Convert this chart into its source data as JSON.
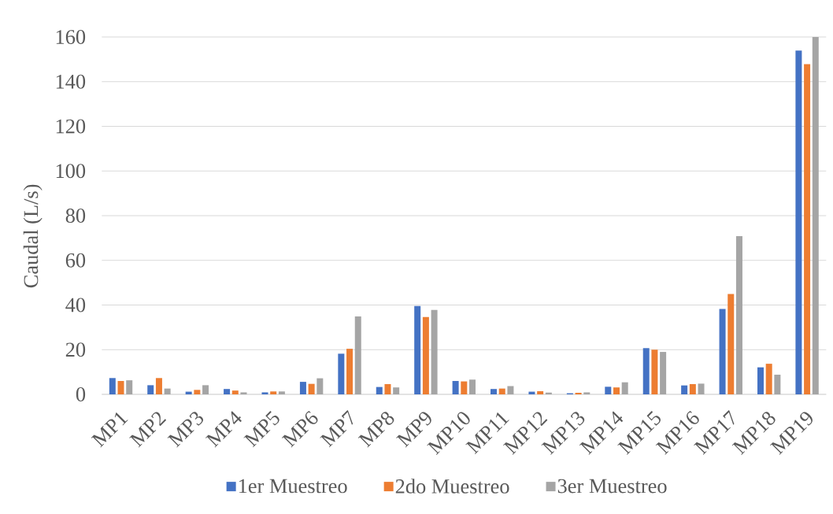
{
  "chart_data": {
    "type": "bar",
    "ylabel": "Caudal (L/s)",
    "categories": [
      "MP1",
      "MP2",
      "MP3",
      "MP4",
      "MP5",
      "MP6",
      "MP7",
      "MP8",
      "MP9",
      "MP10",
      "MP11",
      "MP12",
      "MP13",
      "MP14",
      "MP15",
      "MP16",
      "MP17",
      "MP18",
      "MP19"
    ],
    "series": [
      {
        "name": "1er Muestreo",
        "color": "#4472c4",
        "values": [
          7.3,
          4.1,
          1.2,
          2.4,
          0.9,
          5.6,
          18.2,
          3.3,
          39.6,
          6.0,
          2.4,
          1.2,
          0.5,
          3.4,
          20.7,
          4.0,
          38.2,
          12.1,
          153.9
        ]
      },
      {
        "name": "2do Muestreo",
        "color": "#ed7d31",
        "values": [
          6.0,
          7.3,
          2.0,
          1.7,
          1.3,
          4.7,
          20.4,
          4.6,
          34.6,
          5.8,
          2.6,
          1.4,
          0.7,
          3.1,
          20.0,
          4.6,
          44.9,
          13.7,
          147.8
        ]
      },
      {
        "name": "3er Muestreo",
        "color": "#a5a5a5",
        "values": [
          6.3,
          2.6,
          4.1,
          0.9,
          1.3,
          7.2,
          34.9,
          3.1,
          37.8,
          6.6,
          3.7,
          0.8,
          0.9,
          5.4,
          19.0,
          4.8,
          70.8,
          8.8,
          160
        ]
      }
    ],
    "ylim": [
      0,
      160
    ],
    "yticks": [
      0,
      20,
      40,
      60,
      80,
      100,
      120,
      140,
      160
    ],
    "grid": "y",
    "legend": "bottom"
  }
}
